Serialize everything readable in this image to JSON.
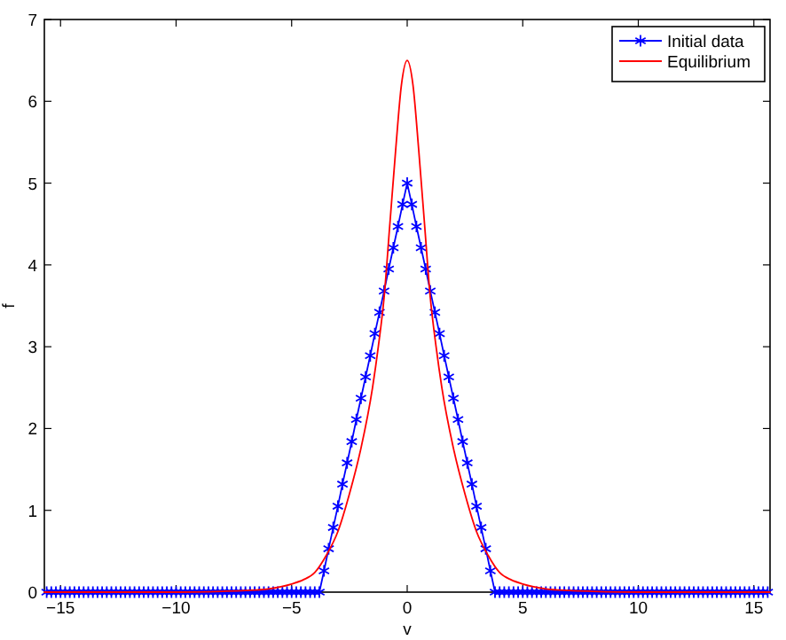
{
  "chart_data": {
    "type": "line",
    "xlabel": "v",
    "ylabel": "f",
    "xlim": [
      -15.7,
      15.7
    ],
    "xticks": [
      -15,
      -10,
      -5,
      0,
      5,
      10,
      15
    ],
    "ylim": [
      0,
      7
    ],
    "yticks": [
      0,
      1,
      2,
      3,
      4,
      5,
      6,
      7
    ],
    "grid": false,
    "legend": "top right",
    "line_style": "solid",
    "series": [
      {
        "name": "Initial data",
        "color": "#0000ff",
        "marker": "cross",
        "x": [
          -15.6,
          -15.4,
          -15.2,
          -15,
          -14.8,
          -14.6,
          -14.4,
          -14.2,
          -14,
          -13.8,
          -13.6,
          -13.4,
          -13.2,
          -13,
          -12.8,
          -12.6,
          -12.4,
          -12.2,
          -12,
          -11.8,
          -11.6,
          -11.4,
          -11.2,
          -11,
          -10.8,
          -10.6,
          -10.4,
          -10.2,
          -10,
          -9.8,
          -9.6,
          -9.4,
          -9.2,
          -9,
          -8.8,
          -8.6,
          -8.4,
          -8.2,
          -8,
          -7.8,
          -7.6,
          -7.4,
          -7.2,
          -7,
          -6.8,
          -6.6,
          -6.4,
          -6.2,
          -6,
          -5.8,
          -5.6,
          -5.4,
          -5.2,
          -5,
          -4.8,
          -4.6,
          -4.4,
          -4.2,
          -4,
          -3.8,
          -3.6,
          -3.4,
          -3.2,
          -3,
          -2.8,
          -2.6,
          -2.4,
          -2.2,
          -2,
          -1.8,
          -1.6,
          -1.4,
          -1.2,
          -1,
          -0.8,
          -0.6,
          -0.4,
          -0.2,
          0,
          0.2,
          0.4,
          0.6,
          0.8,
          1,
          1.2,
          1.4,
          1.6,
          1.8,
          2,
          2.2,
          2.4,
          2.6,
          2.8,
          3,
          3.2,
          3.4,
          3.6,
          3.8,
          4,
          4.2,
          4.4,
          4.6,
          4.8,
          5,
          5.2,
          5.4,
          5.6,
          5.8,
          6,
          6.2,
          6.4,
          6.6,
          6.8,
          7,
          7.2,
          7.4,
          7.6,
          7.8,
          8,
          8.2,
          8.4,
          8.6,
          8.8,
          9,
          9.2,
          9.4,
          9.6,
          9.8,
          10,
          10.2,
          10.4,
          10.6,
          10.8,
          11,
          11.2,
          11.4,
          11.6,
          11.8,
          12,
          12.2,
          12.4,
          12.6,
          12.8,
          13,
          13.2,
          13.4,
          13.6,
          13.8,
          14,
          14.2,
          14.4,
          14.6,
          14.8,
          15,
          15.2,
          15.4,
          15.6
        ],
        "values": [
          0,
          0,
          0,
          0,
          0,
          0,
          0,
          0,
          0,
          0,
          0,
          0,
          0,
          0,
          0,
          0,
          0,
          0,
          0,
          0,
          0,
          0,
          0,
          0,
          0,
          0,
          0,
          0,
          0,
          0,
          0,
          0,
          0,
          0,
          0,
          0,
          0,
          0,
          0,
          0,
          0,
          0,
          0,
          0,
          0,
          0,
          0,
          0,
          0,
          0,
          0,
          0,
          0,
          0,
          0,
          0,
          0,
          0,
          0,
          0,
          0.26,
          0.53,
          0.79,
          1.05,
          1.32,
          1.58,
          1.84,
          2.11,
          2.37,
          2.63,
          2.89,
          3.16,
          3.42,
          3.68,
          3.95,
          4.21,
          4.47,
          4.74,
          5,
          4.74,
          4.47,
          4.21,
          3.95,
          3.68,
          3.42,
          3.16,
          2.89,
          2.63,
          2.37,
          2.11,
          1.84,
          1.58,
          1.32,
          1.05,
          0.79,
          0.53,
          0.26,
          0,
          0,
          0,
          0,
          0,
          0,
          0,
          0,
          0,
          0,
          0,
          0,
          0,
          0,
          0,
          0,
          0,
          0,
          0,
          0,
          0,
          0,
          0,
          0,
          0,
          0,
          0,
          0,
          0,
          0,
          0,
          0,
          0,
          0,
          0,
          0,
          0,
          0,
          0,
          0,
          0,
          0,
          0,
          0,
          0,
          0,
          0,
          0,
          0,
          0,
          0,
          0,
          0,
          0,
          0,
          0,
          0,
          0,
          0,
          0
        ]
      },
      {
        "name": "Equilibrium",
        "color": "#ff0000",
        "marker": "none",
        "x": [
          -15.7,
          -10,
          -8,
          -7,
          -6,
          -5,
          -4.5,
          -4,
          -3.5,
          -3,
          -2.5,
          -2,
          -1.5,
          -1.25,
          -1,
          -0.75,
          -0.5,
          -0.25,
          0,
          0.25,
          0.5,
          0.75,
          1,
          1.25,
          1.5,
          2,
          2.5,
          3,
          3.5,
          4,
          4.5,
          5,
          6,
          7,
          8,
          10,
          15.7
        ],
        "values": [
          0,
          0,
          0.01,
          0.02,
          0.04,
          0.1,
          0.15,
          0.24,
          0.45,
          0.74,
          1.2,
          1.76,
          2.5,
          3.0,
          3.6,
          4.5,
          5.4,
          6.2,
          6.5,
          6.2,
          5.4,
          4.5,
          3.6,
          3.0,
          2.5,
          1.76,
          1.2,
          0.74,
          0.45,
          0.24,
          0.15,
          0.1,
          0.04,
          0.02,
          0.01,
          0,
          0
        ]
      }
    ]
  }
}
